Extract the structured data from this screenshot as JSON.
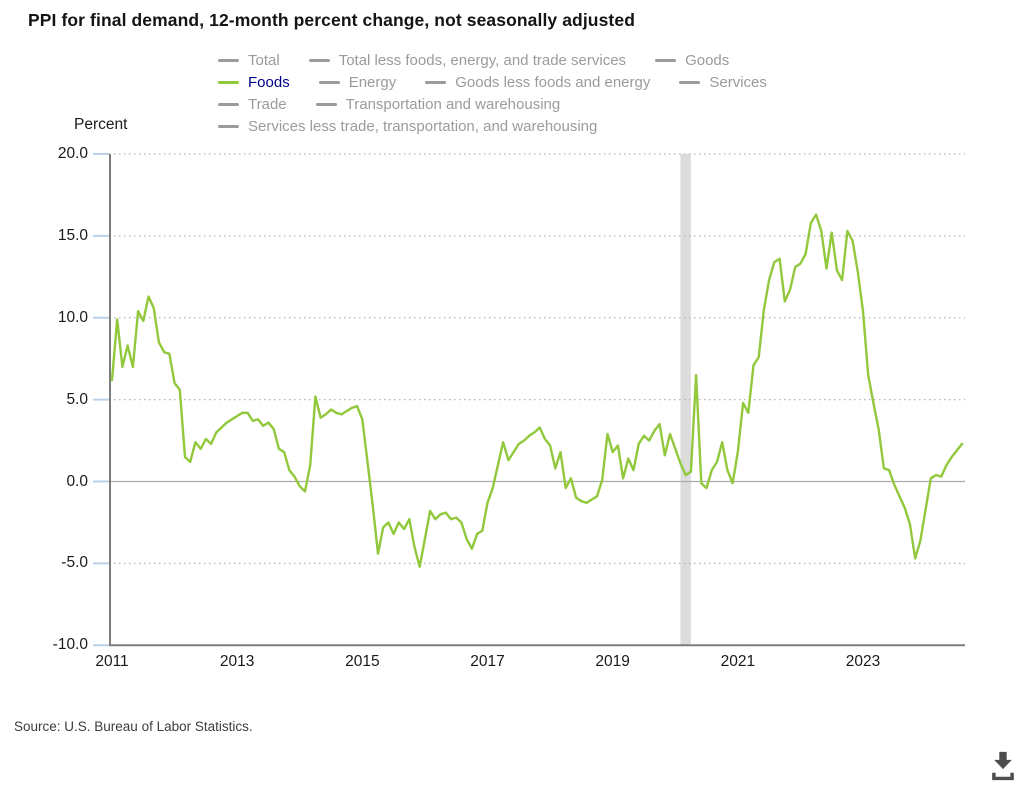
{
  "title": "PPI for final demand, 12-month percent change, not seasonally adjusted",
  "source": "Source: U.S. Bureau of Labor Statistics.",
  "y_axis": {
    "unit_label": "Percent"
  },
  "download_tooltip": "Download",
  "colors": {
    "accent_green": "#91c83c",
    "active_label_blue": "#00008b",
    "inactive_gray": "#9b9b9b",
    "recession_band": "#dcdcdc",
    "axis_gray": "#7d7d7d",
    "grid_gray": "#b5b5b5",
    "zero_line_gray": "#ababab",
    "tick_blue": "#bcd0e8",
    "icon_gray": "#4d4d4d"
  },
  "legend": {
    "rows": [
      [
        {
          "label": "Total",
          "active": false
        },
        {
          "label": "Total less foods, energy, and trade services",
          "active": false
        },
        {
          "label": "Goods",
          "active": false
        }
      ],
      [
        {
          "label": "Foods",
          "active": true
        },
        {
          "label": "Energy",
          "active": false
        },
        {
          "label": "Goods less foods and energy",
          "active": false
        },
        {
          "label": "Services",
          "active": false
        }
      ],
      [
        {
          "label": "Trade",
          "active": false
        },
        {
          "label": "Transportation and warehousing",
          "active": false
        }
      ],
      [
        {
          "label": "Services less trade, transportation, and warehousing",
          "active": false
        }
      ]
    ]
  },
  "chart_data": {
    "type": "line",
    "title": "PPI for final demand, 12-month percent change, not seasonally adjusted",
    "xlabel": "",
    "ylabel": "Percent",
    "ylim": [
      -10,
      20
    ],
    "yticks": [
      20,
      15,
      10,
      5,
      0,
      -5,
      -10
    ],
    "x_year_ticks": [
      2011,
      2013,
      2015,
      2017,
      2019,
      2021,
      2023
    ],
    "grid": "dotted horizontal gridlines, solid zero line",
    "legend_position": "top",
    "recession_band": {
      "start": "2020-02",
      "end": "2020-04"
    },
    "series": [
      {
        "name": "Foods",
        "frequency": "monthly",
        "start": "2011-01",
        "end": "2024-08",
        "values": [
          6.2,
          9.9,
          7.0,
          8.3,
          7.0,
          10.4,
          9.8,
          11.3,
          10.6,
          8.5,
          7.9,
          7.8,
          6.0,
          5.6,
          1.5,
          1.2,
          2.4,
          2.0,
          2.6,
          2.3,
          3.0,
          3.3,
          3.6,
          3.8,
          4.0,
          4.2,
          4.2,
          3.7,
          3.8,
          3.4,
          3.6,
          3.2,
          2.0,
          1.8,
          0.7,
          0.3,
          -0.3,
          -0.6,
          1.0,
          5.2,
          3.9,
          4.1,
          4.4,
          4.2,
          4.1,
          4.3,
          4.5,
          4.6,
          3.8,
          1.2,
          -1.5,
          -4.4,
          -2.8,
          -2.5,
          -3.2,
          -2.5,
          -2.9,
          -2.3,
          -4.0,
          -5.2,
          -3.5,
          -1.8,
          -2.3,
          -2.0,
          -1.9,
          -2.3,
          -2.2,
          -2.5,
          -3.5,
          -4.1,
          -3.2,
          -3.0,
          -1.3,
          -0.4,
          1.0,
          2.4,
          1.3,
          1.8,
          2.3,
          2.5,
          2.8,
          3.0,
          3.3,
          2.6,
          2.2,
          0.8,
          1.8,
          -0.4,
          0.2,
          -1.0,
          -1.2,
          -1.3,
          -1.1,
          -0.9,
          0.1,
          2.9,
          1.8,
          2.2,
          0.2,
          1.4,
          0.7,
          2.3,
          2.8,
          2.5,
          3.1,
          3.5,
          1.6,
          2.9,
          2.0,
          1.1,
          0.4,
          0.6,
          6.5,
          -0.1,
          -0.4,
          0.7,
          1.2,
          2.4,
          0.7,
          -0.1,
          1.8,
          4.8,
          4.2,
          7.1,
          7.6,
          10.5,
          12.3,
          13.4,
          13.6,
          11.0,
          11.7,
          13.1,
          13.3,
          13.9,
          15.8,
          16.3,
          15.3,
          13.0,
          15.2,
          12.9,
          12.3,
          15.3,
          14.7,
          12.8,
          10.4,
          6.5,
          4.8,
          3.2,
          0.8,
          0.7,
          -0.2,
          -0.9,
          -1.6,
          -2.6,
          -4.7,
          -3.6,
          -1.7,
          0.2,
          0.4,
          0.3,
          1.0,
          1.5,
          1.9,
          2.3
        ]
      }
    ]
  }
}
